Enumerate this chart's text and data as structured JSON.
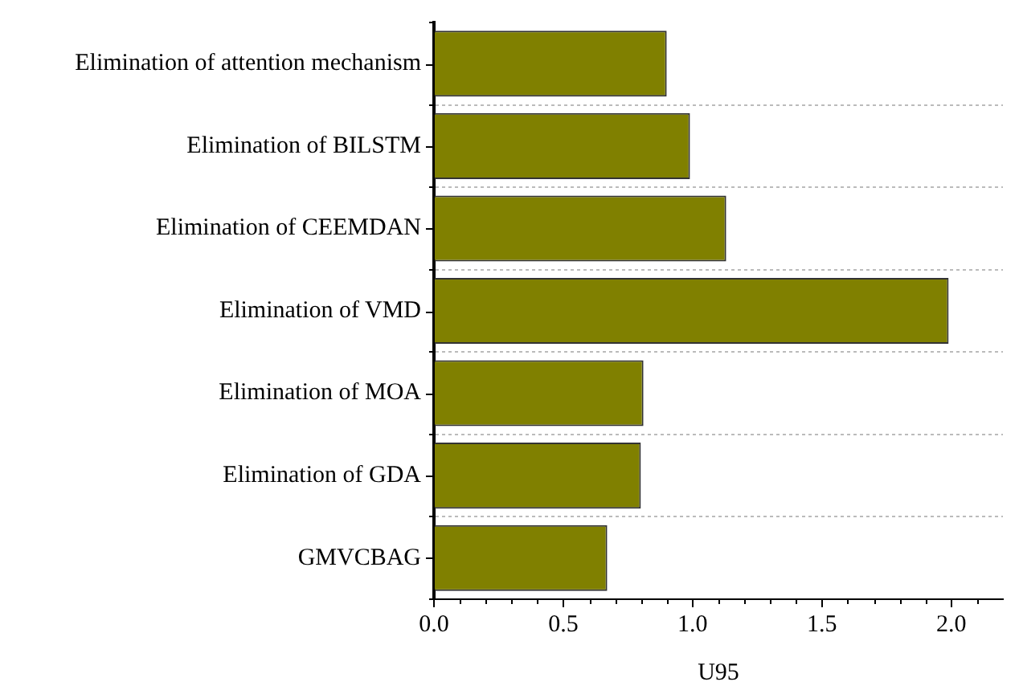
{
  "chart_data": {
    "type": "bar",
    "orientation": "horizontal",
    "categories": [
      "Elimination of attention mechanism",
      "Elimination of BILSTM",
      "Elimination of CEEMDAN",
      "Elimination of VMD",
      "Elimination of MOA",
      "Elimination of GDA",
      "GMVCBAG"
    ],
    "values": [
      0.9,
      0.99,
      1.13,
      1.99,
      0.81,
      0.8,
      0.67
    ],
    "color": "#808000",
    "xlabel": "U95",
    "xlim": [
      0,
      2.2
    ],
    "xticks": [
      {
        "value": 0,
        "label": "0.0"
      },
      {
        "value": 0.1,
        "label": null
      },
      {
        "value": 0.2,
        "label": null
      },
      {
        "value": 0.3,
        "label": null
      },
      {
        "value": 0.4,
        "label": null
      },
      0.5,
      {
        "value": 0.6,
        "label": null
      },
      {
        "value": 0.7,
        "label": null
      },
      {
        "value": 0.8,
        "label": null
      },
      {
        "value": 0.9,
        "label": null
      },
      {
        "value": 1,
        "label": "1.0"
      },
      {
        "value": 1.1,
        "label": null
      },
      {
        "value": 1.2,
        "label": null
      },
      {
        "value": 1.3,
        "label": null
      },
      {
        "value": 1.4,
        "label": null
      },
      1.5,
      {
        "value": 1.6,
        "label": null
      },
      {
        "value": 1.7,
        "label": null
      },
      {
        "value": 1.8,
        "label": null
      },
      {
        "value": 1.9,
        "label": null
      },
      {
        "value": 2,
        "label": "2.0"
      },
      {
        "value": 2.1,
        "label": null
      }
    ],
    "grid": "y"
  }
}
